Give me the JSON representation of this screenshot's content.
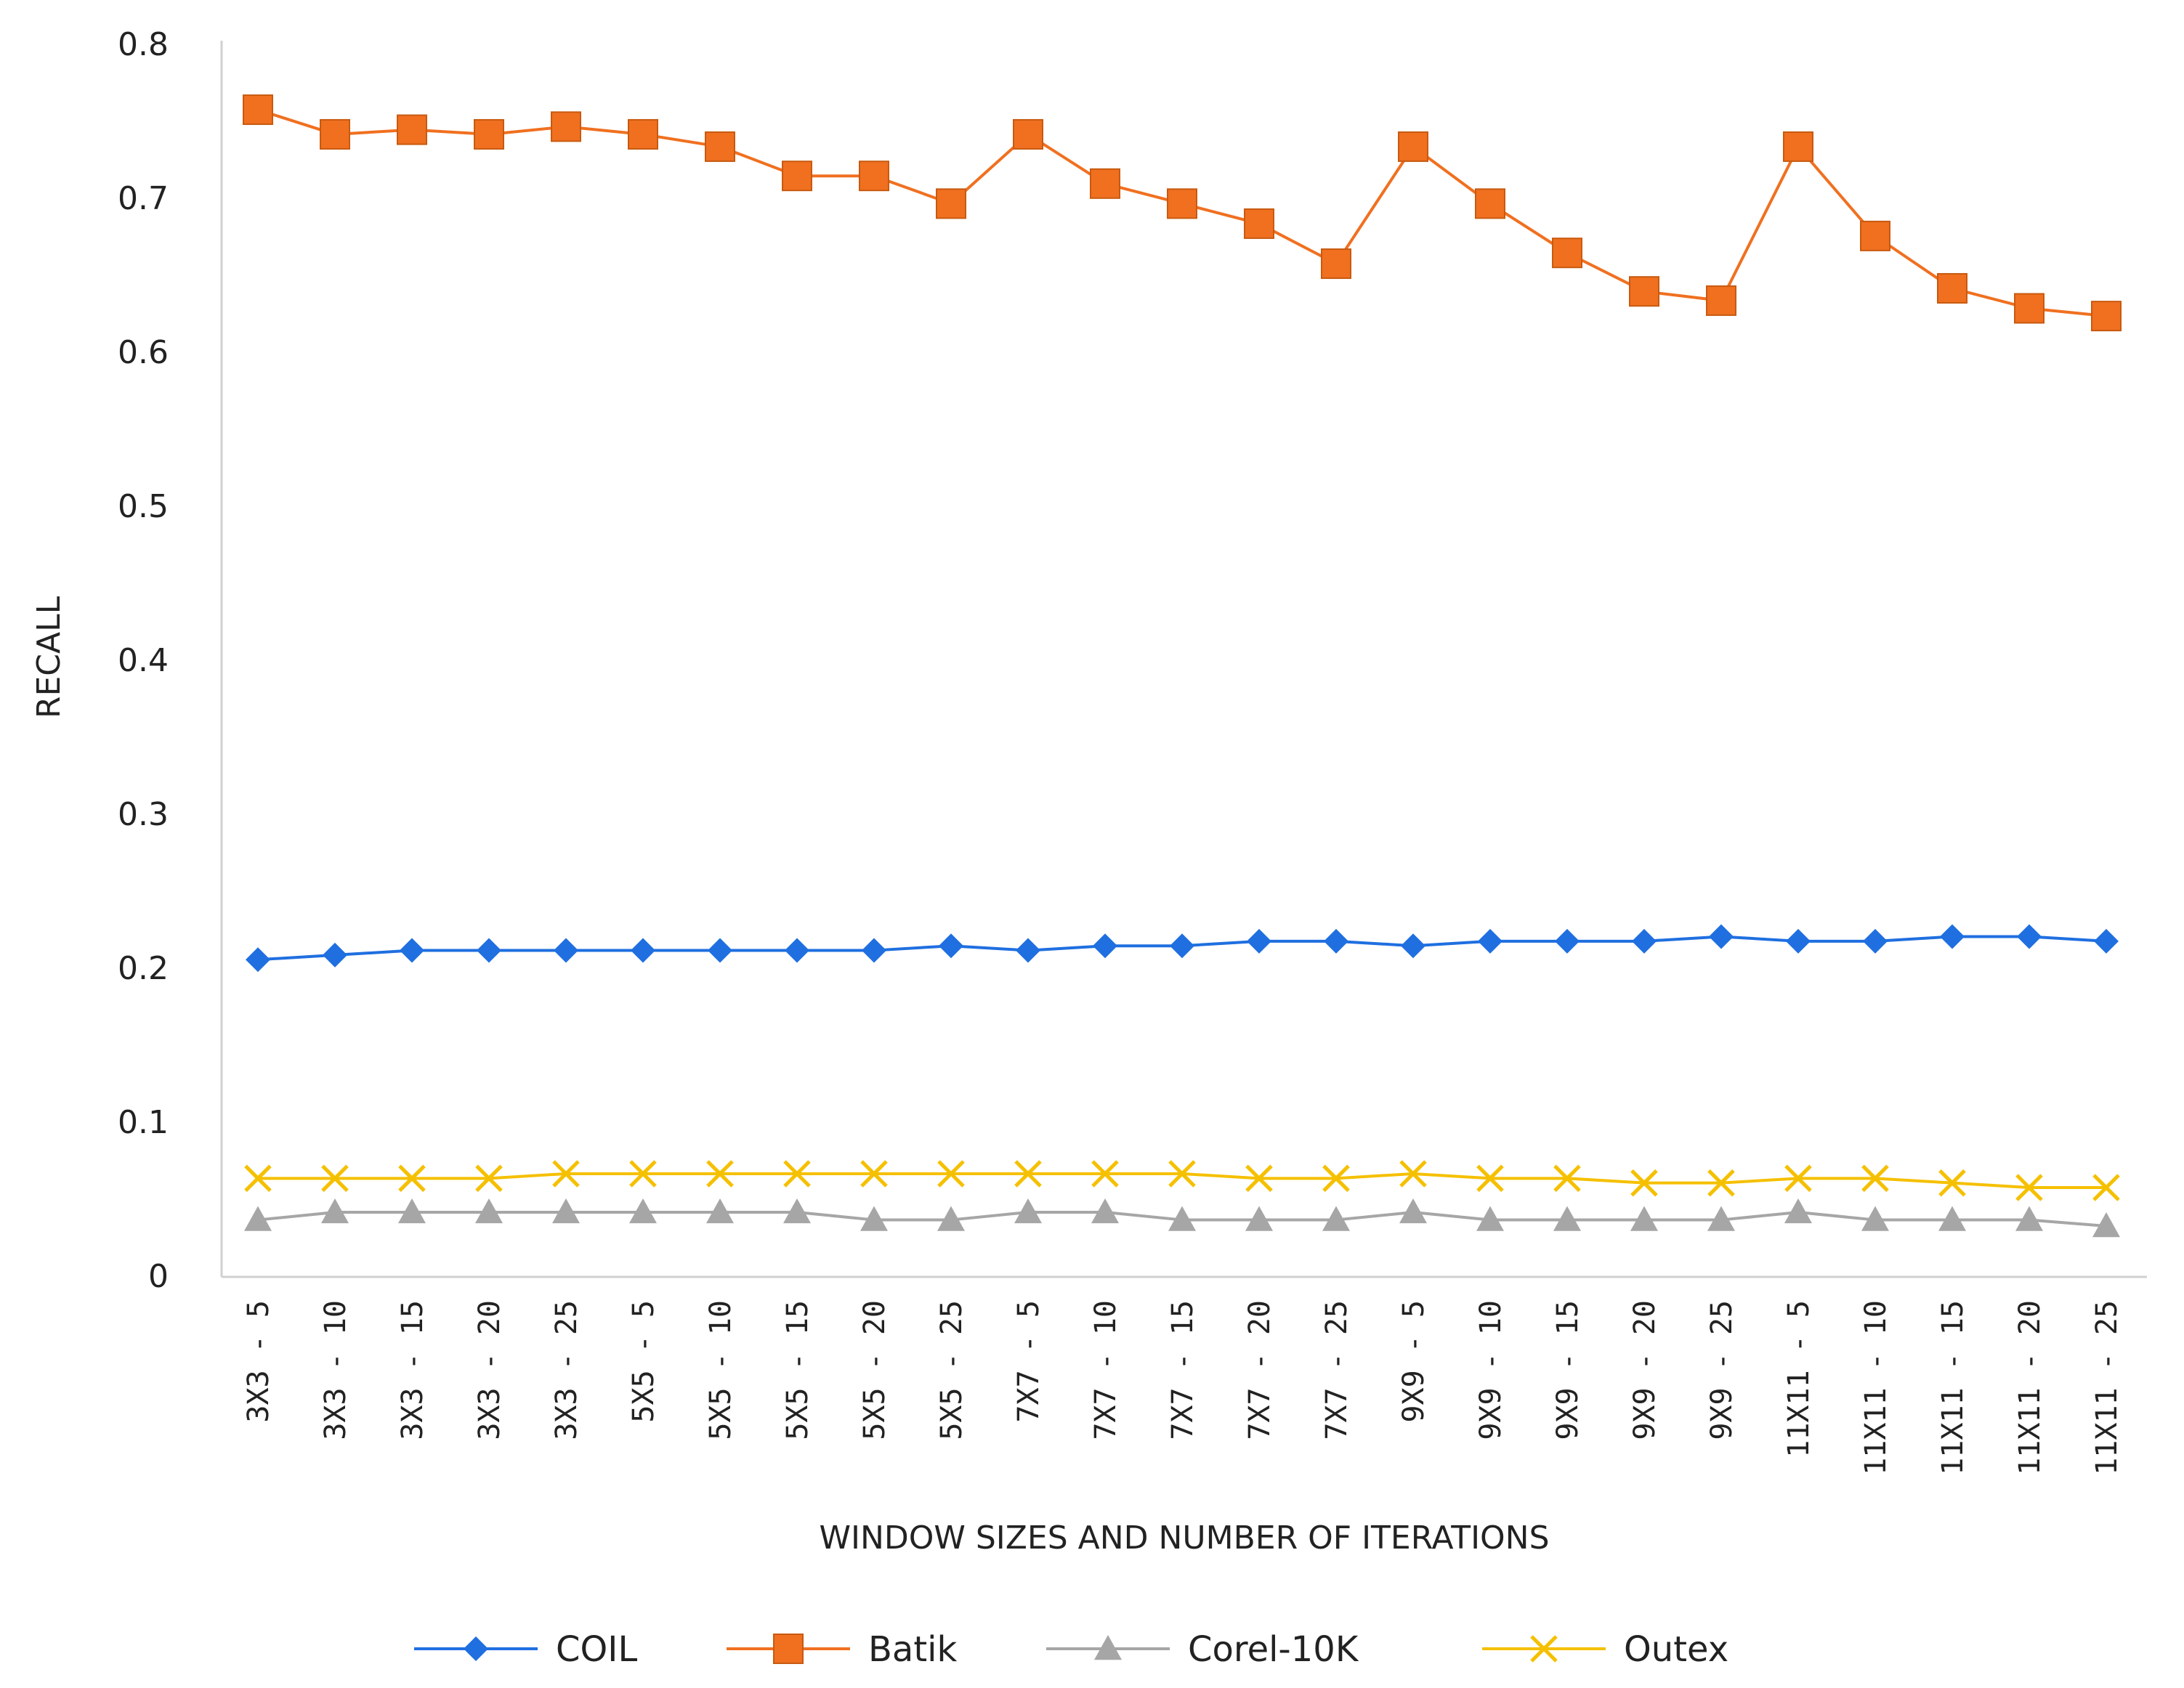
{
  "chart_data": {
    "type": "line",
    "title": "",
    "xlabel": "WINDOW SIZES AND NUMBER OF ITERATIONS",
    "ylabel": "RECALL",
    "ylim": [
      0,
      0.8
    ],
    "yticks": [
      0,
      0.1,
      0.2,
      0.3,
      0.4,
      0.5,
      0.6,
      0.7,
      0.8
    ],
    "ytick_labels": [
      "0",
      "0.1",
      "0.2",
      "0.3",
      "0.4",
      "0.5",
      "0.6",
      "0.7",
      "0.8"
    ],
    "grid": false,
    "legend_position": "bottom",
    "categories": [
      "3X3 - 5",
      "3X3 - 10",
      "3X3 - 15",
      "3X3 - 20",
      "3X3 - 25",
      "5X5 - 5",
      "5X5 - 10",
      "5X5 - 15",
      "5X5 - 20",
      "5X5 - 25",
      "7X7 - 5",
      "7X7 - 10",
      "7X7 - 15",
      "7X7 - 20",
      "7X7 - 25",
      "9X9 - 5",
      "9X9 - 10",
      "9X9 - 15",
      "9X9 - 20",
      "9X9 - 25",
      "11X11 - 5",
      "11X11 - 10",
      "11X11 - 15",
      "11X11 - 20",
      "11X11 - 25"
    ],
    "series": [
      {
        "name": "COIL",
        "color": "#1f6fe0",
        "marker": "diamond",
        "values": [
          0.206,
          0.209,
          0.212,
          0.212,
          0.212,
          0.212,
          0.212,
          0.212,
          0.212,
          0.215,
          0.212,
          0.215,
          0.215,
          0.218,
          0.218,
          0.215,
          0.218,
          0.218,
          0.218,
          0.221,
          0.218,
          0.218,
          0.221,
          0.221,
          0.218
        ]
      },
      {
        "name": "Batik",
        "color": "#f07020",
        "marker": "square",
        "values": [
          0.758,
          0.742,
          0.745,
          0.742,
          0.747,
          0.742,
          0.734,
          0.715,
          0.715,
          0.697,
          0.742,
          0.71,
          0.697,
          0.684,
          0.658,
          0.734,
          0.697,
          0.665,
          0.64,
          0.634,
          0.734,
          0.676,
          0.642,
          0.629,
          0.624
        ]
      },
      {
        "name": "Corel-10K",
        "color": "#a6a6a6",
        "marker": "triangle",
        "values": [
          0.037,
          0.042,
          0.042,
          0.042,
          0.042,
          0.042,
          0.042,
          0.042,
          0.037,
          0.037,
          0.042,
          0.042,
          0.037,
          0.037,
          0.037,
          0.042,
          0.037,
          0.037,
          0.037,
          0.037,
          0.042,
          0.037,
          0.037,
          0.037,
          0.033
        ]
      },
      {
        "name": "Outex",
        "color": "#f5c000",
        "marker": "x",
        "values": [
          0.064,
          0.064,
          0.064,
          0.064,
          0.067,
          0.067,
          0.067,
          0.067,
          0.067,
          0.067,
          0.067,
          0.067,
          0.067,
          0.064,
          0.064,
          0.067,
          0.064,
          0.064,
          0.061,
          0.061,
          0.064,
          0.064,
          0.061,
          0.058,
          0.058
        ]
      }
    ]
  }
}
